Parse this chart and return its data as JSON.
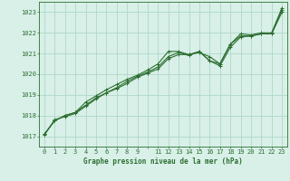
{
  "bg_color": "#d8f0e8",
  "grid_color": "#b0d8c8",
  "line_color": "#2d6e30",
  "xlabel": "Graphe pression niveau de la mer (hPa)",
  "ylim": [
    1016.5,
    1023.5
  ],
  "xlim": [
    -0.5,
    23.5
  ],
  "yticks": [
    1017,
    1018,
    1019,
    1020,
    1021,
    1022,
    1023
  ],
  "xtick_labels": [
    "0",
    "1",
    "2",
    "3",
    "4",
    "5",
    "6",
    "7",
    "8",
    "9",
    "",
    "11",
    "12",
    "13",
    "14",
    "15",
    "16",
    "17",
    "18",
    "19",
    "20",
    "21",
    "22",
    "23"
  ],
  "xtick_pos": [
    0,
    1,
    2,
    3,
    4,
    5,
    6,
    7,
    8,
    9,
    10,
    11,
    12,
    13,
    14,
    15,
    16,
    17,
    18,
    19,
    20,
    21,
    22,
    23
  ],
  "series": [
    [
      1017.1,
      1017.75,
      1018.0,
      1018.15,
      1018.65,
      1018.95,
      1019.25,
      1019.5,
      1019.75,
      1019.95,
      1020.2,
      1020.5,
      1021.1,
      1021.1,
      1020.95,
      1021.05,
      1020.85,
      1020.5,
      1021.45,
      1021.95,
      1021.9,
      1022.0,
      1022.0,
      1023.2
    ],
    [
      1017.1,
      1017.75,
      1018.0,
      1018.15,
      1018.5,
      1018.85,
      1019.1,
      1019.35,
      1019.65,
      1019.9,
      1020.1,
      1020.35,
      1020.85,
      1021.05,
      1020.9,
      1021.1,
      1020.65,
      1020.4,
      1021.3,
      1021.8,
      1021.85,
      1021.95,
      1021.95,
      1023.0
    ],
    [
      1017.05,
      1017.8,
      1017.95,
      1018.1,
      1018.45,
      1018.8,
      1019.1,
      1019.3,
      1019.55,
      1019.85,
      1020.05,
      1020.25,
      1020.75,
      1020.95,
      1020.95,
      1021.1,
      1020.65,
      1020.5,
      1021.45,
      1021.85,
      1021.85,
      1021.95,
      1021.95,
      1023.1
    ]
  ]
}
